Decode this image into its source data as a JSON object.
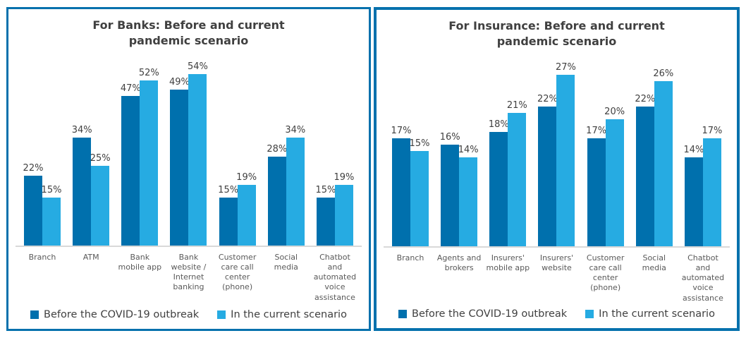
{
  "colors": {
    "series_before": "#0070AD",
    "series_current": "#26ABE2",
    "panel_border": "#0571AD",
    "axis_line": "#D9D9D9",
    "title_text": "#404040",
    "category_text": "#595959"
  },
  "chart_data": [
    {
      "type": "bar",
      "title": "For Banks: Before and current pandemic scenario",
      "categories": [
        "Branch",
        "ATM",
        "Bank mobile app",
        "Bank website / Internet banking",
        "Customer care call center (phone)",
        "Social media",
        "Chatbot and automated voice assistance"
      ],
      "series": [
        {
          "name": "Before the COVID-19 outbreak",
          "color": "#0070AD",
          "values": [
            22,
            34,
            47,
            49,
            15,
            28,
            15
          ]
        },
        {
          "name": "In the current scenario",
          "color": "#26ABE2",
          "values": [
            15,
            25,
            52,
            54,
            19,
            34,
            19
          ]
        }
      ],
      "unit": "%",
      "ylim": [
        0,
        60
      ],
      "grid": false,
      "legend_position": "bottom"
    },
    {
      "type": "bar",
      "title": "For Insurance: Before and current pandemic scenario",
      "categories": [
        "Branch",
        "Agents and brokers",
        "Insurers' mobile app",
        "Insurers' website",
        "Customer care call center (phone)",
        "Social media",
        "Chatbot and automated voice assistance"
      ],
      "series": [
        {
          "name": "Before the COVID-19 outbreak",
          "color": "#0070AD",
          "values": [
            17,
            16,
            18,
            22,
            17,
            22,
            14
          ]
        },
        {
          "name": "In the current scenario",
          "color": "#26ABE2",
          "values": [
            15,
            14,
            21,
            27,
            20,
            26,
            17
          ]
        }
      ],
      "unit": "%",
      "ylim": [
        0,
        30
      ],
      "grid": false,
      "legend_position": "bottom"
    }
  ]
}
